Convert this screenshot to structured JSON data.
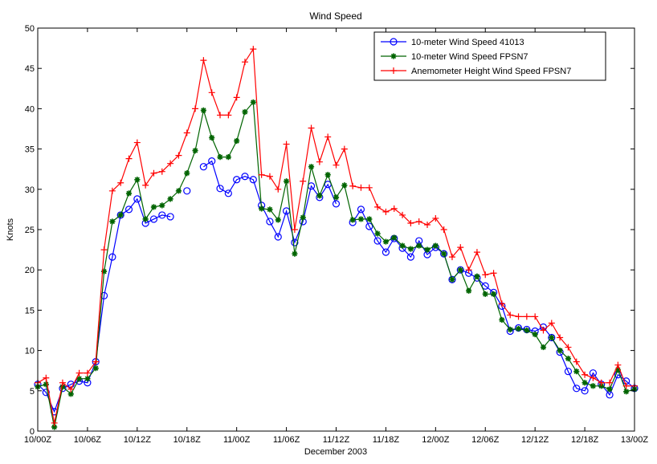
{
  "chart_data": {
    "type": "line",
    "title": "Wind Speed",
    "xlabel": "December 2003",
    "ylabel": "Knots",
    "ylim": [
      0,
      50
    ],
    "yticks": [
      0,
      5,
      10,
      15,
      20,
      25,
      30,
      35,
      40,
      45,
      50
    ],
    "xlim": [
      0,
      72
    ],
    "xticks": [
      {
        "hour": 0,
        "label": "10/00Z"
      },
      {
        "hour": 6,
        "label": "10/06Z"
      },
      {
        "hour": 12,
        "label": "10/12Z"
      },
      {
        "hour": 18,
        "label": "10/18Z"
      },
      {
        "hour": 24,
        "label": "11/00Z"
      },
      {
        "hour": 30,
        "label": "11/06Z"
      },
      {
        "hour": 36,
        "label": "11/12Z"
      },
      {
        "hour": 42,
        "label": "11/18Z"
      },
      {
        "hour": 48,
        "label": "12/00Z"
      },
      {
        "hour": 54,
        "label": "12/06Z"
      },
      {
        "hour": 60,
        "label": "12/12Z"
      },
      {
        "hour": 66,
        "label": "12/18Z"
      },
      {
        "hour": 72,
        "label": "13/00Z"
      }
    ],
    "grid": false,
    "legend_position": "top-right",
    "series": [
      {
        "name": "10-meter Wind Speed 41013",
        "color": "#0000ff",
        "marker": "circle",
        "segments": [
          [
            [
              0,
              5.8
            ],
            [
              1,
              4.8
            ],
            [
              2,
              2.4
            ],
            [
              3,
              5.3
            ],
            [
              4,
              5.8
            ],
            [
              5,
              6.2
            ],
            [
              6,
              6.0
            ],
            [
              7,
              8.6
            ],
            [
              8,
              16.8
            ],
            [
              9,
              21.6
            ],
            [
              10,
              26.8
            ],
            [
              11,
              27.5
            ],
            [
              12,
              28.8
            ],
            [
              13,
              25.8
            ],
            [
              14,
              26.3
            ],
            [
              15,
              26.8
            ],
            [
              16,
              26.6
            ]
          ],
          [
            [
              18,
              29.8
            ]
          ],
          [
            [
              20,
              32.8
            ],
            [
              21,
              33.5
            ],
            [
              22,
              30.1
            ],
            [
              23,
              29.5
            ],
            [
              24,
              31.2
            ],
            [
              25,
              31.6
            ],
            [
              26,
              31.2
            ],
            [
              27,
              28.0
            ],
            [
              28,
              26.0
            ],
            [
              29,
              24.1
            ],
            [
              30,
              27.3
            ],
            [
              31,
              23.4
            ],
            [
              32,
              26.0
            ],
            [
              33,
              30.4
            ],
            [
              34,
              29.0
            ],
            [
              35,
              30.6
            ],
            [
              36,
              28.2
            ]
          ],
          [
            [
              38,
              25.9
            ],
            [
              39,
              27.5
            ],
            [
              40,
              25.4
            ],
            [
              41,
              23.6
            ],
            [
              42,
              22.2
            ],
            [
              43,
              23.9
            ],
            [
              44,
              22.7
            ],
            [
              45,
              21.6
            ],
            [
              46,
              23.6
            ],
            [
              47,
              21.9
            ],
            [
              48,
              22.8
            ],
            [
              49,
              22.0
            ],
            [
              50,
              18.8
            ],
            [
              51,
              20.0
            ],
            [
              52,
              19.6
            ],
            [
              53,
              19.0
            ],
            [
              54,
              18.0
            ],
            [
              55,
              17.2
            ],
            [
              56,
              15.5
            ],
            [
              57,
              12.4
            ],
            [
              58,
              12.8
            ],
            [
              59,
              12.6
            ],
            [
              60,
              12.4
            ],
            [
              61,
              12.9
            ],
            [
              62,
              11.6
            ],
            [
              63,
              9.8
            ],
            [
              64,
              7.4
            ],
            [
              65,
              5.3
            ],
            [
              66,
              5.0
            ],
            [
              67,
              7.2
            ],
            [
              68,
              5.8
            ],
            [
              69,
              4.5
            ],
            [
              70,
              7.0
            ],
            [
              71,
              6.2
            ],
            [
              72,
              5.3
            ]
          ]
        ]
      },
      {
        "name": "10-meter Wind Speed FPSN7",
        "color": "#006400",
        "marker": "star",
        "segments": [
          [
            [
              0,
              5.5
            ],
            [
              1,
              5.8
            ],
            [
              2,
              0.5
            ],
            [
              3,
              5.5
            ],
            [
              4,
              4.6
            ],
            [
              5,
              6.5
            ],
            [
              6,
              6.5
            ],
            [
              7,
              7.8
            ],
            [
              8,
              19.8
            ],
            [
              9,
              26.0
            ],
            [
              10,
              26.8
            ],
            [
              11,
              29.5
            ],
            [
              12,
              31.2
            ],
            [
              13,
              26.3
            ],
            [
              14,
              27.8
            ],
            [
              15,
              28.0
            ],
            [
              16,
              28.8
            ],
            [
              17,
              29.8
            ],
            [
              18,
              32.0
            ],
            [
              19,
              34.8
            ],
            [
              20,
              39.8
            ],
            [
              21,
              36.4
            ],
            [
              22,
              34.0
            ],
            [
              23,
              34.0
            ],
            [
              24,
              36.0
            ],
            [
              25,
              39.6
            ],
            [
              26,
              40.8
            ],
            [
              27,
              27.6
            ],
            [
              28,
              27.5
            ],
            [
              29,
              26.2
            ],
            [
              30,
              31.0
            ],
            [
              31,
              22.0
            ],
            [
              32,
              26.5
            ],
            [
              33,
              32.8
            ],
            [
              34,
              29.2
            ],
            [
              35,
              31.8
            ],
            [
              36,
              29.0
            ],
            [
              37,
              30.5
            ],
            [
              38,
              26.2
            ],
            [
              39,
              26.3
            ],
            [
              40,
              26.3
            ],
            [
              41,
              24.5
            ],
            [
              42,
              23.5
            ],
            [
              43,
              24.0
            ],
            [
              44,
              23.0
            ],
            [
              45,
              22.6
            ],
            [
              46,
              23.0
            ],
            [
              47,
              22.5
            ],
            [
              48,
              23.0
            ],
            [
              49,
              22.0
            ],
            [
              50,
              18.8
            ],
            [
              51,
              20.0
            ],
            [
              52,
              17.4
            ],
            [
              53,
              19.2
            ],
            [
              54,
              17.0
            ],
            [
              55,
              17.0
            ],
            [
              56,
              13.8
            ],
            [
              57,
              12.6
            ],
            [
              58,
              12.7
            ],
            [
              59,
              12.5
            ],
            [
              60,
              12.0
            ],
            [
              61,
              10.4
            ],
            [
              62,
              11.6
            ],
            [
              63,
              10.0
            ],
            [
              64,
              9.0
            ],
            [
              65,
              7.4
            ],
            [
              66,
              6.0
            ],
            [
              67,
              5.6
            ],
            [
              68,
              5.6
            ],
            [
              69,
              5.2
            ],
            [
              70,
              7.6
            ],
            [
              71,
              4.9
            ],
            [
              72,
              5.2
            ]
          ]
        ]
      },
      {
        "name": "Anemometer Height Wind Speed FPSN7",
        "color": "#ff0000",
        "marker": "plus",
        "segments": [
          [
            [
              0,
              6.0
            ],
            [
              1,
              6.6
            ],
            [
              2,
              1.0
            ],
            [
              3,
              6.0
            ],
            [
              4,
              5.2
            ],
            [
              5,
              7.2
            ],
            [
              6,
              7.2
            ],
            [
              7,
              8.6
            ],
            [
              8,
              22.5
            ],
            [
              9,
              29.8
            ],
            [
              10,
              30.8
            ],
            [
              11,
              33.8
            ],
            [
              12,
              35.8
            ],
            [
              13,
              30.5
            ],
            [
              14,
              32.0
            ],
            [
              15,
              32.2
            ],
            [
              16,
              33.2
            ],
            [
              17,
              34.2
            ],
            [
              18,
              37.0
            ],
            [
              19,
              40.0
            ],
            [
              20,
              46.0
            ],
            [
              21,
              42.0
            ],
            [
              22,
              39.2
            ],
            [
              23,
              39.2
            ],
            [
              24,
              41.4
            ],
            [
              25,
              45.8
            ],
            [
              26,
              47.4
            ],
            [
              27,
              31.8
            ],
            [
              28,
              31.6
            ],
            [
              29,
              30.0
            ],
            [
              30,
              35.6
            ],
            [
              31,
              25.0
            ],
            [
              32,
              31.0
            ],
            [
              33,
              37.6
            ],
            [
              34,
              33.4
            ],
            [
              35,
              36.5
            ],
            [
              36,
              33.0
            ],
            [
              37,
              35.0
            ],
            [
              38,
              30.4
            ],
            [
              39,
              30.2
            ],
            [
              40,
              30.2
            ],
            [
              41,
              27.8
            ],
            [
              42,
              27.2
            ],
            [
              43,
              27.6
            ],
            [
              44,
              26.8
            ],
            [
              45,
              25.8
            ],
            [
              46,
              26.0
            ],
            [
              47,
              25.6
            ],
            [
              48,
              26.4
            ],
            [
              49,
              25.0
            ],
            [
              50,
              21.6
            ],
            [
              51,
              22.8
            ],
            [
              52,
              20.0
            ],
            [
              53,
              22.2
            ],
            [
              54,
              19.4
            ],
            [
              55,
              19.6
            ],
            [
              56,
              15.8
            ],
            [
              57,
              14.4
            ],
            [
              58,
              14.2
            ],
            [
              59,
              14.2
            ],
            [
              60,
              14.2
            ],
            [
              61,
              12.5
            ],
            [
              62,
              13.4
            ],
            [
              63,
              11.6
            ],
            [
              64,
              10.4
            ],
            [
              65,
              8.6
            ],
            [
              66,
              7.0
            ],
            [
              67,
              6.6
            ],
            [
              68,
              6.0
            ],
            [
              69,
              6.0
            ],
            [
              70,
              8.2
            ],
            [
              71,
              5.6
            ],
            [
              72,
              5.6
            ]
          ]
        ]
      }
    ]
  }
}
